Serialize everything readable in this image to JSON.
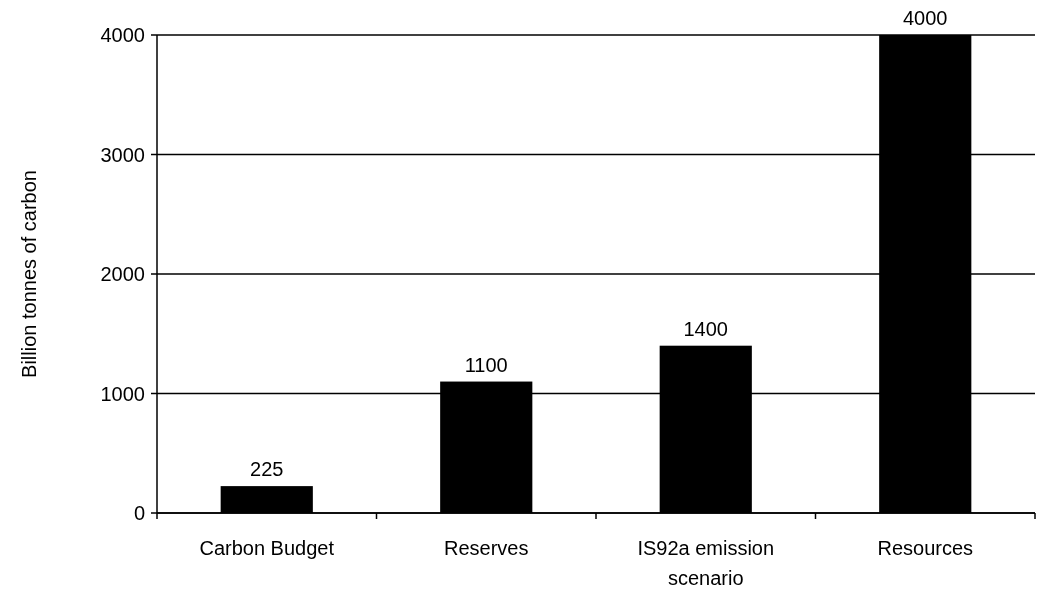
{
  "chart_data": {
    "type": "bar",
    "ylabel": "Billion tonnes of carbon",
    "categories": [
      "Carbon Budget",
      "Reserves",
      "IS92a emission scenario",
      "Resources"
    ],
    "values": [
      225,
      1100,
      1400,
      4000
    ],
    "color": "#000000",
    "ylim": [
      0,
      4000
    ],
    "yticks": [
      0,
      1000,
      2000,
      3000,
      4000
    ],
    "grid": "y",
    "data_labels": true
  }
}
